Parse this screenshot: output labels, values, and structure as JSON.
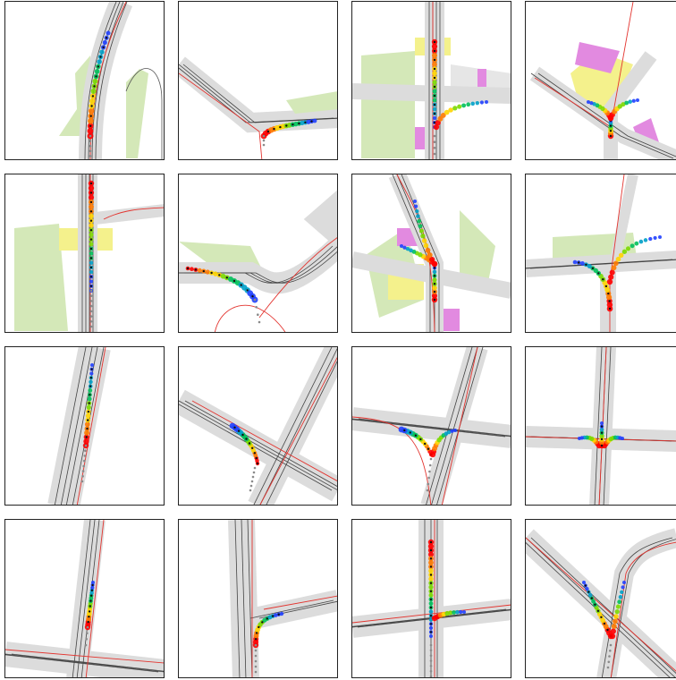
{
  "figure": {
    "rows": 4,
    "cols": 4,
    "colors": {
      "border": "#222222",
      "road_gray": "#dcdcdc",
      "lane_line": "#444444",
      "route_red": "#e3342f",
      "green_area": "#d4e8b8",
      "yellow_area": "#f4f18c",
      "magenta_area": "#e28ae0",
      "history_gray": "#8a8a8a",
      "ego_black": "#111111"
    },
    "trajectory_colormap": [
      "#ff0000",
      "#ff7a00",
      "#ffd400",
      "#7cd900",
      "#00c05a",
      "#00a0c8",
      "#2040ff",
      "#1a00c8"
    ],
    "panels": [
      {
        "style": "map",
        "scene": "north-curve"
      },
      {
        "style": "map",
        "scene": "west-merge"
      },
      {
        "style": "map",
        "scene": "cross-fork"
      },
      {
        "style": "map",
        "scene": "fan-junction"
      },
      {
        "style": "map",
        "scene": "straight-north"
      },
      {
        "style": "map",
        "scene": "roundabout-left"
      },
      {
        "style": "map",
        "scene": "y-split"
      },
      {
        "style": "map",
        "scene": "t-east-west"
      },
      {
        "style": "lanes",
        "scene": "straight-diag"
      },
      {
        "style": "lanes",
        "scene": "x-cross-left"
      },
      {
        "style": "lanes",
        "scene": "t-split-both"
      },
      {
        "style": "lanes",
        "scene": "plus-fan"
      },
      {
        "style": "lanes",
        "scene": "straight-up-diag"
      },
      {
        "style": "lanes",
        "scene": "right-turn"
      },
      {
        "style": "lanes",
        "scene": "straight-long"
      },
      {
        "style": "lanes",
        "scene": "diag-cluster"
      }
    ]
  }
}
